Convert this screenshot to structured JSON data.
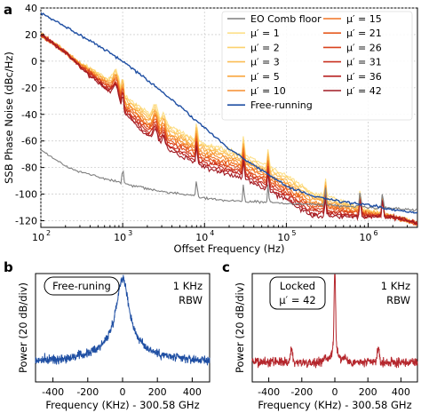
{
  "panels": {
    "a": "a",
    "b": "b",
    "c": "c"
  },
  "chart_data": [
    {
      "panel": "a",
      "type": "line",
      "x_scale": "log",
      "xlim": [
        100,
        4000000
      ],
      "ylim": [
        -125,
        40
      ],
      "xlabel": "Offset Frequency (Hz)",
      "ylabel": "SSB Phase Noise (dBc/Hz)",
      "x_ticks": [
        100,
        1000,
        10000,
        100000,
        1000000
      ],
      "x_tick_labels": [
        [
          "10",
          "2"
        ],
        [
          "10",
          "3"
        ],
        [
          "10",
          "4"
        ],
        [
          "10",
          "5"
        ],
        [
          "10",
          "6"
        ]
      ],
      "y_ticks": [
        -120,
        -100,
        -80,
        -60,
        -40,
        -20,
        0,
        20,
        40
      ],
      "grid": true,
      "legend_placement": "top-right",
      "series": [
        {
          "name": "EO Comb floor",
          "color": "#7f7f7f",
          "kind": "floor",
          "points": [
            [
              100,
              -67
            ],
            [
              150,
              -74
            ],
            [
              200,
              -79
            ],
            [
              300,
              -83
            ],
            [
              500,
              -87
            ],
            [
              800,
              -90
            ],
            [
              1000,
              -92
            ],
            [
              2000,
              -96
            ],
            [
              3000,
              -98
            ],
            [
              5000,
              -100
            ],
            [
              7000,
              -101
            ],
            [
              10000,
              -103
            ],
            [
              20000,
              -105
            ],
            [
              50000,
              -106
            ],
            [
              100000,
              -107
            ],
            [
              300000,
              -108
            ],
            [
              1000000,
              -110
            ],
            [
              4000000,
              -112
            ]
          ]
        },
        {
          "name": "μ′ = 1",
          "color": "#fde08a",
          "offset": 0
        },
        {
          "name": "μ′ = 2",
          "color": "#fcd16e",
          "offset": -4
        },
        {
          "name": "μ′ = 3",
          "color": "#fbbe55",
          "offset": -8
        },
        {
          "name": "μ′ = 5",
          "color": "#f9a73f",
          "offset": -12
        },
        {
          "name": "μ′ = 10",
          "color": "#f58e2e",
          "offset": -16
        },
        {
          "name": "μ′ = 15",
          "color": "#f07424",
          "offset": -20
        },
        {
          "name": "μ′ = 21",
          "color": "#e65a1f",
          "offset": -24
        },
        {
          "name": "μ′ = 26",
          "color": "#d9431e",
          "offset": -28
        },
        {
          "name": "μ′ = 31",
          "color": "#c9301f",
          "offset": -32
        },
        {
          "name": "μ′ = 36",
          "color": "#b82222",
          "offset": -36
        },
        {
          "name": "μ′ = 42",
          "color": "#a01a23",
          "offset": -40
        },
        {
          "name": "Free-running",
          "color": "#1f4fa3",
          "kind": "free",
          "points": [
            [
              100,
              36
            ],
            [
              200,
              26
            ],
            [
              500,
              12
            ],
            [
              1000,
              0
            ],
            [
              2000,
              -14
            ],
            [
              5000,
              -34
            ],
            [
              10000,
              -50
            ],
            [
              20000,
              -66
            ],
            [
              50000,
              -82
            ],
            [
              100000,
              -94
            ],
            [
              200000,
              -101
            ],
            [
              500000,
              -106
            ],
            [
              1000000,
              -108
            ],
            [
              2000000,
              -112
            ],
            [
              4000000,
              -114
            ]
          ]
        }
      ],
      "locked_base_points": [
        [
          100,
          20
        ],
        [
          300,
          -1
        ],
        [
          700,
          -14
        ],
        [
          1000,
          -25
        ],
        [
          3000,
          -46
        ],
        [
          10000,
          -62
        ],
        [
          30000,
          -70
        ],
        [
          100000,
          -86
        ],
        [
          200000,
          -98
        ],
        [
          1000000,
          -112
        ],
        [
          4000000,
          -122
        ]
      ],
      "spurs_hz": [
        1000,
        8000,
        30000,
        60000,
        300000,
        800000,
        1500000
      ]
    },
    {
      "panel": "b",
      "type": "line",
      "xlim": [
        -500,
        500
      ],
      "x_ticks": [
        -400,
        -200,
        0,
        200,
        400
      ],
      "xlabel": "Frequency (KHz) - 300.58 GHz",
      "ylabel": "Power (20 dB/div)",
      "annotation_box": "Free-runing",
      "annotation_rbw": [
        "1 KHz",
        "RBW"
      ],
      "color": "#1f4fa3",
      "profile": "broad lorentzian peak centered at 0 kHz, noise floor ~55 dB below peak"
    },
    {
      "panel": "c",
      "type": "line",
      "xlim": [
        -500,
        500
      ],
      "x_ticks": [
        -400,
        -200,
        0,
        200,
        400
      ],
      "xlabel": "Frequency (KHz) - 300.58 GHz",
      "ylabel": "Power (20 dB/div)",
      "annotation_box": [
        "Locked",
        "μ′ = 42"
      ],
      "annotation_rbw": [
        "1 KHz",
        "RBW"
      ],
      "color": "#b5272d",
      "profile": "narrow carrier at 0 kHz with side peaks near ±260 kHz and ±60 kHz"
    }
  ]
}
